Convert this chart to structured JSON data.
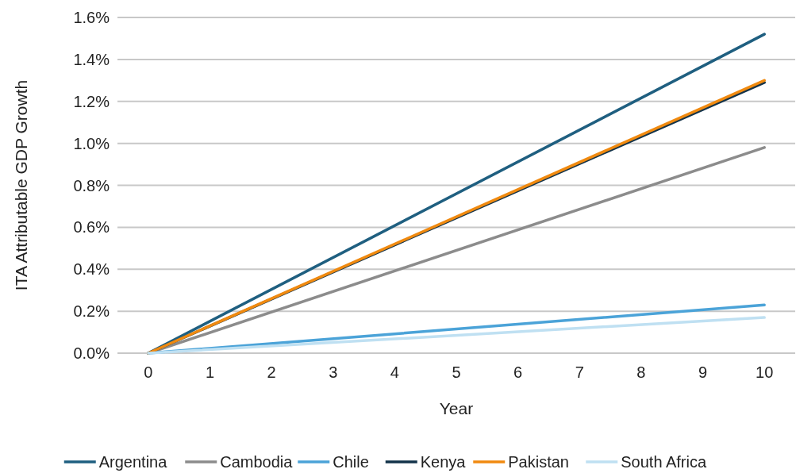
{
  "chart_data": {
    "type": "line",
    "xlabel": "Year",
    "ylabel": "ITA Attributable GDP Growth",
    "xlim": [
      -0.5,
      10.5
    ],
    "xticks": [
      0,
      1,
      2,
      3,
      4,
      5,
      6,
      7,
      8,
      9,
      10
    ],
    "ylim": [
      0,
      1.6
    ],
    "yticks": [
      {
        "value": 0,
        "label": "0.0%"
      },
      {
        "value": 0.2,
        "label": "0.2%"
      },
      {
        "value": 0.4,
        "label": "0.4%"
      },
      {
        "value": 0.6,
        "label": "0.6%"
      },
      {
        "value": 0.8,
        "label": "0.8%"
      },
      {
        "value": 1.0,
        "label": "1.0%"
      },
      {
        "value": 1.2,
        "label": "1.2%"
      },
      {
        "value": 1.4,
        "label": "1.4%"
      },
      {
        "value": 1.6,
        "label": "1.6%"
      }
    ],
    "x": [
      0,
      10
    ],
    "grid": "y",
    "legend": "bottom",
    "marker": "none",
    "line_style": "solid",
    "series": [
      {
        "name": "Argentina",
        "color": "#1f5f80",
        "values": [
          0,
          1.52
        ]
      },
      {
        "name": "Cambodia",
        "color": "#8c8c8c",
        "values": [
          0,
          0.98
        ]
      },
      {
        "name": "Chile",
        "color": "#4ba3d8",
        "values": [
          0,
          0.23
        ]
      },
      {
        "name": "Kenya",
        "color": "#13334a",
        "values": [
          0,
          1.29
        ]
      },
      {
        "name": "Pakistan",
        "color": "#f08a10",
        "values": [
          0,
          1.3
        ]
      },
      {
        "name": "South Africa",
        "color": "#bfe0f2",
        "values": [
          0,
          0.17
        ]
      }
    ]
  }
}
